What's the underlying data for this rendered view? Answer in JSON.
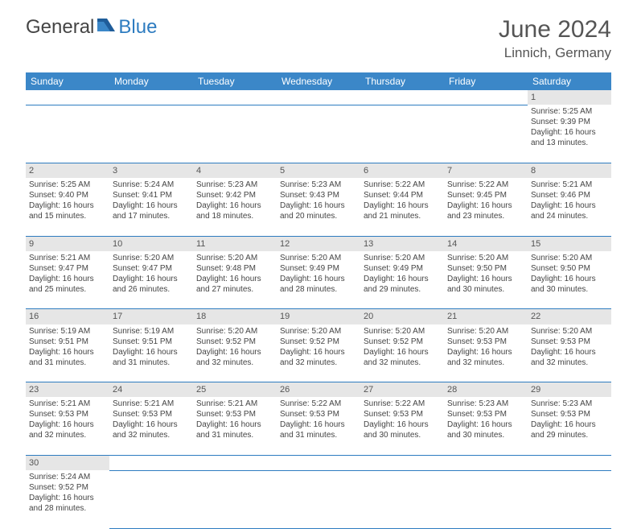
{
  "logo": {
    "text1": "General",
    "text2": "Blue"
  },
  "title": "June 2024",
  "location": "Linnich, Germany",
  "header_bg": "#3b87c8",
  "header_fg": "#ffffff",
  "daynum_bg": "#e6e6e6",
  "border_color": "#2e7cc0",
  "text_color": "#444444",
  "font_family": "Arial",
  "title_fontsize": 30,
  "location_fontsize": 17,
  "header_fontsize": 12,
  "cell_fontsize": 10,
  "day_headers": [
    "Sunday",
    "Monday",
    "Tuesday",
    "Wednesday",
    "Thursday",
    "Friday",
    "Saturday"
  ],
  "weeks": [
    [
      null,
      null,
      null,
      null,
      null,
      null,
      {
        "n": "1",
        "sr": "Sunrise: 5:25 AM",
        "ss": "Sunset: 9:39 PM",
        "d1": "Daylight: 16 hours",
        "d2": "and 13 minutes."
      }
    ],
    [
      {
        "n": "2",
        "sr": "Sunrise: 5:25 AM",
        "ss": "Sunset: 9:40 PM",
        "d1": "Daylight: 16 hours",
        "d2": "and 15 minutes."
      },
      {
        "n": "3",
        "sr": "Sunrise: 5:24 AM",
        "ss": "Sunset: 9:41 PM",
        "d1": "Daylight: 16 hours",
        "d2": "and 17 minutes."
      },
      {
        "n": "4",
        "sr": "Sunrise: 5:23 AM",
        "ss": "Sunset: 9:42 PM",
        "d1": "Daylight: 16 hours",
        "d2": "and 18 minutes."
      },
      {
        "n": "5",
        "sr": "Sunrise: 5:23 AM",
        "ss": "Sunset: 9:43 PM",
        "d1": "Daylight: 16 hours",
        "d2": "and 20 minutes."
      },
      {
        "n": "6",
        "sr": "Sunrise: 5:22 AM",
        "ss": "Sunset: 9:44 PM",
        "d1": "Daylight: 16 hours",
        "d2": "and 21 minutes."
      },
      {
        "n": "7",
        "sr": "Sunrise: 5:22 AM",
        "ss": "Sunset: 9:45 PM",
        "d1": "Daylight: 16 hours",
        "d2": "and 23 minutes."
      },
      {
        "n": "8",
        "sr": "Sunrise: 5:21 AM",
        "ss": "Sunset: 9:46 PM",
        "d1": "Daylight: 16 hours",
        "d2": "and 24 minutes."
      }
    ],
    [
      {
        "n": "9",
        "sr": "Sunrise: 5:21 AM",
        "ss": "Sunset: 9:47 PM",
        "d1": "Daylight: 16 hours",
        "d2": "and 25 minutes."
      },
      {
        "n": "10",
        "sr": "Sunrise: 5:20 AM",
        "ss": "Sunset: 9:47 PM",
        "d1": "Daylight: 16 hours",
        "d2": "and 26 minutes."
      },
      {
        "n": "11",
        "sr": "Sunrise: 5:20 AM",
        "ss": "Sunset: 9:48 PM",
        "d1": "Daylight: 16 hours",
        "d2": "and 27 minutes."
      },
      {
        "n": "12",
        "sr": "Sunrise: 5:20 AM",
        "ss": "Sunset: 9:49 PM",
        "d1": "Daylight: 16 hours",
        "d2": "and 28 minutes."
      },
      {
        "n": "13",
        "sr": "Sunrise: 5:20 AM",
        "ss": "Sunset: 9:49 PM",
        "d1": "Daylight: 16 hours",
        "d2": "and 29 minutes."
      },
      {
        "n": "14",
        "sr": "Sunrise: 5:20 AM",
        "ss": "Sunset: 9:50 PM",
        "d1": "Daylight: 16 hours",
        "d2": "and 30 minutes."
      },
      {
        "n": "15",
        "sr": "Sunrise: 5:20 AM",
        "ss": "Sunset: 9:50 PM",
        "d1": "Daylight: 16 hours",
        "d2": "and 30 minutes."
      }
    ],
    [
      {
        "n": "16",
        "sr": "Sunrise: 5:19 AM",
        "ss": "Sunset: 9:51 PM",
        "d1": "Daylight: 16 hours",
        "d2": "and 31 minutes."
      },
      {
        "n": "17",
        "sr": "Sunrise: 5:19 AM",
        "ss": "Sunset: 9:51 PM",
        "d1": "Daylight: 16 hours",
        "d2": "and 31 minutes."
      },
      {
        "n": "18",
        "sr": "Sunrise: 5:20 AM",
        "ss": "Sunset: 9:52 PM",
        "d1": "Daylight: 16 hours",
        "d2": "and 32 minutes."
      },
      {
        "n": "19",
        "sr": "Sunrise: 5:20 AM",
        "ss": "Sunset: 9:52 PM",
        "d1": "Daylight: 16 hours",
        "d2": "and 32 minutes."
      },
      {
        "n": "20",
        "sr": "Sunrise: 5:20 AM",
        "ss": "Sunset: 9:52 PM",
        "d1": "Daylight: 16 hours",
        "d2": "and 32 minutes."
      },
      {
        "n": "21",
        "sr": "Sunrise: 5:20 AM",
        "ss": "Sunset: 9:53 PM",
        "d1": "Daylight: 16 hours",
        "d2": "and 32 minutes."
      },
      {
        "n": "22",
        "sr": "Sunrise: 5:20 AM",
        "ss": "Sunset: 9:53 PM",
        "d1": "Daylight: 16 hours",
        "d2": "and 32 minutes."
      }
    ],
    [
      {
        "n": "23",
        "sr": "Sunrise: 5:21 AM",
        "ss": "Sunset: 9:53 PM",
        "d1": "Daylight: 16 hours",
        "d2": "and 32 minutes."
      },
      {
        "n": "24",
        "sr": "Sunrise: 5:21 AM",
        "ss": "Sunset: 9:53 PM",
        "d1": "Daylight: 16 hours",
        "d2": "and 32 minutes."
      },
      {
        "n": "25",
        "sr": "Sunrise: 5:21 AM",
        "ss": "Sunset: 9:53 PM",
        "d1": "Daylight: 16 hours",
        "d2": "and 31 minutes."
      },
      {
        "n": "26",
        "sr": "Sunrise: 5:22 AM",
        "ss": "Sunset: 9:53 PM",
        "d1": "Daylight: 16 hours",
        "d2": "and 31 minutes."
      },
      {
        "n": "27",
        "sr": "Sunrise: 5:22 AM",
        "ss": "Sunset: 9:53 PM",
        "d1": "Daylight: 16 hours",
        "d2": "and 30 minutes."
      },
      {
        "n": "28",
        "sr": "Sunrise: 5:23 AM",
        "ss": "Sunset: 9:53 PM",
        "d1": "Daylight: 16 hours",
        "d2": "and 30 minutes."
      },
      {
        "n": "29",
        "sr": "Sunrise: 5:23 AM",
        "ss": "Sunset: 9:53 PM",
        "d1": "Daylight: 16 hours",
        "d2": "and 29 minutes."
      }
    ],
    [
      {
        "n": "30",
        "sr": "Sunrise: 5:24 AM",
        "ss": "Sunset: 9:52 PM",
        "d1": "Daylight: 16 hours",
        "d2": "and 28 minutes."
      },
      null,
      null,
      null,
      null,
      null,
      null
    ]
  ]
}
